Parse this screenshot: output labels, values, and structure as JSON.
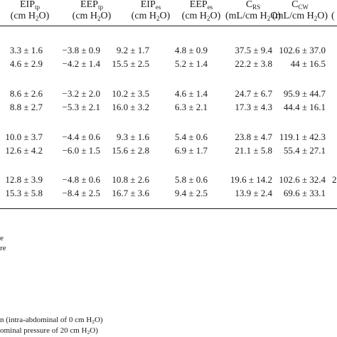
{
  "table": {
    "headers": [
      {
        "main": "EIP",
        "sub": "tp",
        "units": "(cm H",
        "units_sub": "2",
        "units_tail": "O)"
      },
      {
        "main": "EEP",
        "sub": "tp",
        "units": "(cm H",
        "units_sub": "2",
        "units_tail": "O)"
      },
      {
        "main": "EIP",
        "sub": "es",
        "units": "(cm H",
        "units_sub": "2",
        "units_tail": "O)"
      },
      {
        "main": "EEP",
        "sub": "es",
        "units": "(cm H",
        "units_sub": "2",
        "units_tail": "O)"
      },
      {
        "main": "C",
        "sub": "RS",
        "units": "(mL/cm H",
        "units_sub": "2",
        "units_tail": "O)"
      },
      {
        "main": "C",
        "sub": "CW",
        "units": "(mL/cm H",
        "units_sub": "2",
        "units_tail": "O)"
      }
    ],
    "edge_header": "(",
    "rows": [
      [
        "3.3 ± 1.6",
        "−3.8 ± 0.9",
        "9.2 ± 1.7",
        "4.8 ± 0.9",
        "37.5 ± 9.4",
        "102.6 ± 37.0"
      ],
      [
        "4.6 ± 2.9",
        "−4.2 ± 1.4",
        "15.5 ± 2.5",
        "5.2 ± 1.4",
        "22.2 ± 3.8",
        "44 ± 16.5"
      ],
      [
        "8.6 ± 2.6",
        "−3.2 ± 2.0",
        "10.2 ± 3.5",
        "4.6 ± 1.4",
        "24.7 ± 6.7",
        "95.9 ± 44.7"
      ],
      [
        "8.8 ± 2.7",
        "−5.3 ± 2.1",
        "16.0 ± 3.2",
        "6.3 ± 2.1",
        "17.3 ± 4.3",
        "44.4 ± 16.1"
      ],
      [
        "10.0 ± 3.7",
        "−4.4 ± 0.6",
        "9.3 ± 1.6",
        "5.4 ± 0.6",
        "23.8 ± 4.7",
        "119.1 ± 42.3"
      ],
      [
        "12.6 ± 4.2",
        "−6.0 ± 1.5",
        "15.6 ± 2.8",
        "6.9 ± 1.7",
        "21.1 ± 5.8",
        "55.4 ± 27.1"
      ],
      [
        "12.8 ± 3.9",
        "−4.8 ± 0.6",
        "10.8 ± 2.6",
        "5.8 ± 0.6",
        "19.6 ± 14.2",
        "102.6 ± 32.4"
      ],
      [
        "15.3 ± 5.8",
        "−8.4 ± 2.5",
        "16.7 ± 3.6",
        "9.4 ± 2.5",
        "13.9 ± 2.4",
        "69.6 ± 33.1"
      ]
    ],
    "edge_cells": [
      "",
      "",
      "",
      "",
      "",
      "",
      "2",
      ""
    ]
  },
  "footnotes": {
    "line1": "e",
    "line2": "re",
    "line3_pre": "n (intra-abdominal of 0 cm H",
    "line3_sub": "2",
    "line3_post": "O)",
    "line4_pre": "ominal pressure of 20 cm H",
    "line4_sub": "2",
    "line4_post": "O)"
  }
}
